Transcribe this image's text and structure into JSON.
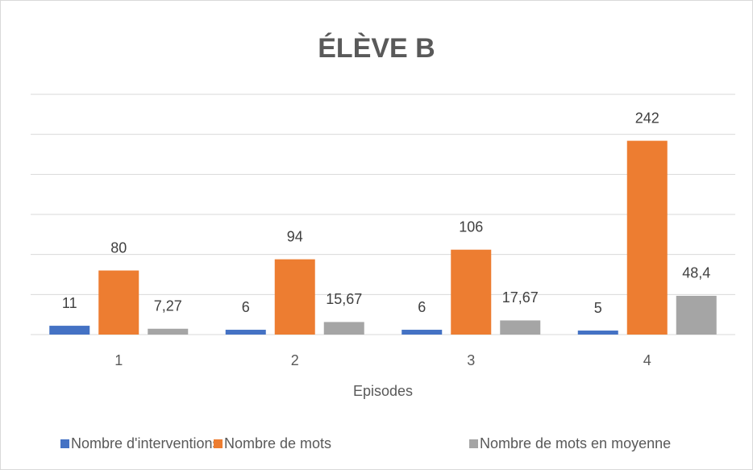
{
  "chart_data": {
    "type": "bar",
    "title": "ÉLÈVE B",
    "categories": [
      "1",
      "2",
      "3",
      "4"
    ],
    "x_label": "Episodes",
    "series": [
      {
        "name": "Nombre d'interventions",
        "color": "#4472c4",
        "values": [
          11,
          6,
          6,
          5
        ]
      },
      {
        "name": "Nombre de mots",
        "color": "#ed7d31",
        "values": [
          80,
          94,
          106,
          242
        ]
      },
      {
        "name": "Nombre de mots en moyenne",
        "color": "#a5a5a5",
        "values": [
          7.27,
          15.67,
          17.67,
          48.4
        ],
        "value_labels": [
          "7,27",
          "15,67",
          "17,67",
          "48,4"
        ]
      }
    ],
    "ylim": [
      0,
      300
    ],
    "yticks": [
      0,
      50,
      100,
      150,
      200,
      250,
      300
    ],
    "grid": true,
    "legend": "bottom"
  }
}
